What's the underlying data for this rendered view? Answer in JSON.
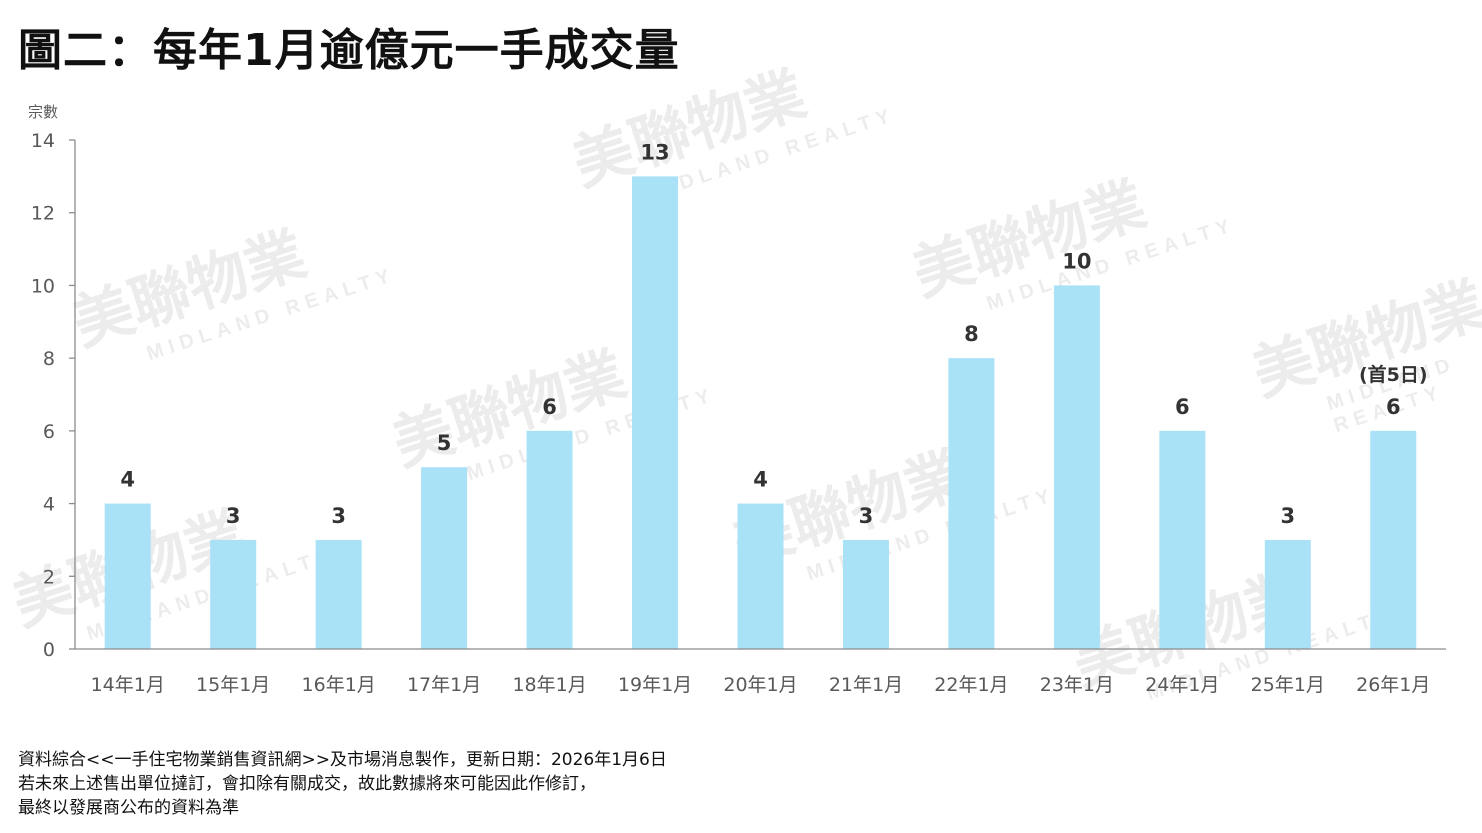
{
  "title": "圖二：每年1月逾億元一手成交量",
  "watermark": {
    "chinese": "美聯物業",
    "english": "MIDLAND REALTY"
  },
  "colors": {
    "bar": "#a9e1f7",
    "axis": "#8c8c8c",
    "text": "#333333",
    "tick_text": "#595959"
  },
  "chart_data": {
    "type": "bar",
    "ylabel": "宗數",
    "ylim": [
      0,
      14
    ],
    "yticks": [
      0,
      2,
      4,
      6,
      8,
      10,
      12,
      14
    ],
    "categories": [
      "14年1月",
      "15年1月",
      "16年1月",
      "17年1月",
      "18年1月",
      "19年1月",
      "20年1月",
      "21年1月",
      "22年1月",
      "23年1月",
      "24年1月",
      "25年1月",
      "26年1月"
    ],
    "values": [
      4,
      3,
      3,
      5,
      6,
      13,
      4,
      3,
      8,
      10,
      6,
      3,
      6
    ],
    "annotations": [
      {
        "category": "26年1月",
        "text": "(首5日)"
      }
    ],
    "grid": false
  },
  "notes": [
    "資料綜合<<一手住宅物業銷售資訊網>>及市場消息製作，更新日期：2026年1月6日",
    "若未來上述售出單位撻訂，會扣除有關成交，故此數據將來可能因此作修訂，",
    "最終以發展商公布的資料為準"
  ]
}
